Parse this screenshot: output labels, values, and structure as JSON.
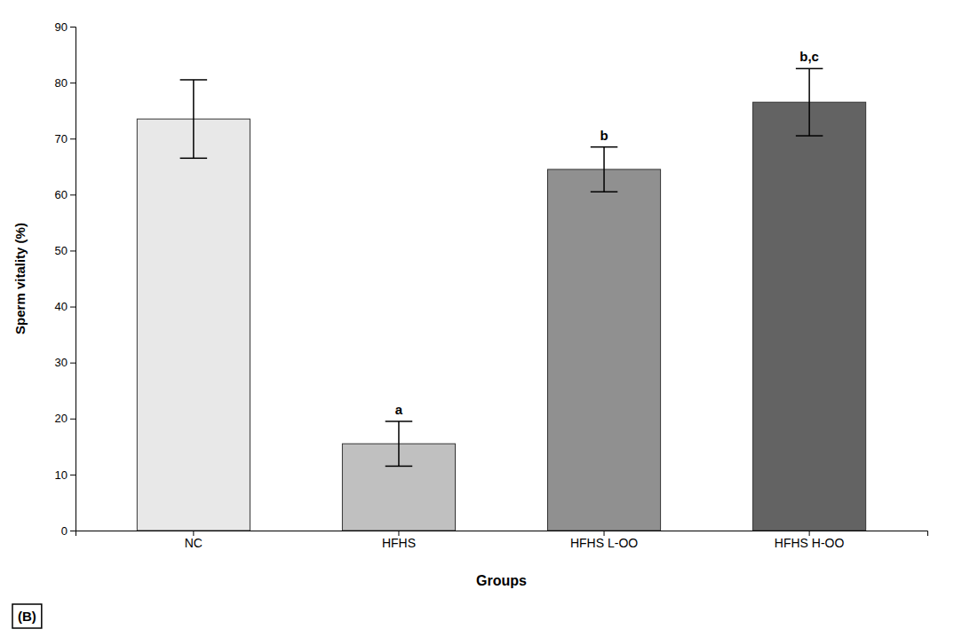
{
  "chart_data": {
    "type": "bar",
    "categories": [
      "NC",
      "HFHS",
      "HFHS L-OO",
      "HFHS H-OO"
    ],
    "values": [
      73.5,
      15.5,
      64.5,
      76.5
    ],
    "errors": [
      7.0,
      4.0,
      4.0,
      6.0
    ],
    "colors": [
      "#e8e8e8",
      "#c0c0c0",
      "#909090",
      "#636363"
    ],
    "y_label": "Sperm vitality (%)",
    "x_label": "Groups",
    "ylim": [
      0,
      90
    ],
    "yticks": [
      0,
      10,
      20,
      30,
      40,
      50,
      60,
      70,
      80,
      90
    ],
    "grid": false,
    "annotations": [
      {
        "text": "a",
        "category": "HFHS"
      },
      {
        "text": "b",
        "category": "HFHS L-OO"
      },
      {
        "text": "b,c",
        "category": "HFHS H-OO"
      },
      {
        "text": "(B)"
      }
    ]
  }
}
